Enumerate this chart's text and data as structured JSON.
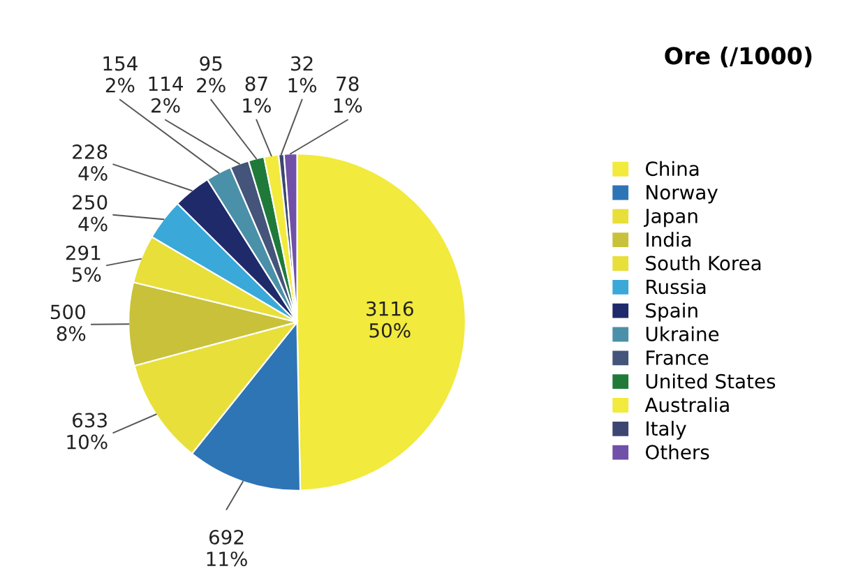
{
  "chart_data": {
    "type": "pie",
    "title": "Ore (/1000)",
    "categories": [
      "China",
      "Norway",
      "Japan",
      "India",
      "South Korea",
      "Russia",
      "Spain",
      "Ukraine",
      "France",
      "United States",
      "Australia",
      "Italy",
      "Others"
    ],
    "values": [
      3116,
      692,
      633,
      500,
      291,
      250,
      228,
      154,
      114,
      95,
      87,
      32,
      78
    ],
    "colors": [
      "#f2ea3c",
      "#2e75b6",
      "#e8df3a",
      "#c9c13a",
      "#e8df3a",
      "#3aa8d8",
      "#1f2a6b",
      "#4a90a8",
      "#44547a",
      "#1f7a3a",
      "#f2ea3c",
      "#3c4670",
      "#7050a8"
    ],
    "value_labels": [
      "3116\n50%",
      "692\n11%",
      "633\n10%",
      "500\n8%",
      "291\n5%",
      "250\n4%",
      "228\n4%",
      "154\n2%",
      "114\n2%",
      "95\n2%",
      "87\n1%",
      "32\n1%",
      "78\n1%"
    ],
    "legend": "right"
  }
}
